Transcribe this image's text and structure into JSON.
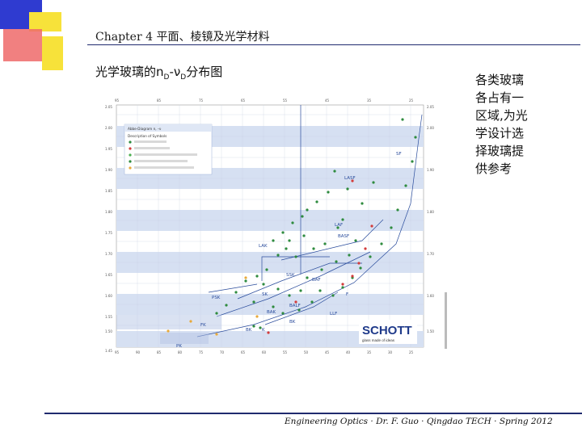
{
  "header": {
    "title": "Chapter 4 平面、棱镜及光学材料"
  },
  "slide": {
    "heading_main": "光学玻璃的n",
    "heading_sub1": "D",
    "heading_dash": "-ν",
    "heading_sub2": "D",
    "heading_tail": "分布图",
    "side_note": "各类玻璃各占有一区域,为光学设计选择玻璃提供参考"
  },
  "chart": {
    "legend_title": "Abbe-Diagram n, –ν",
    "legend_subtitle": "Description of Symbols",
    "legend_items": [
      {
        "color": "#2e8b3e"
      },
      {
        "color": "#d23b3b"
      },
      {
        "color": "#4caf50"
      },
      {
        "color": "#2e8b3e"
      },
      {
        "color": "#e8a93a"
      }
    ],
    "regions": [
      "LASF",
      "LAF",
      "LAK",
      "BASF",
      "SSK",
      "BAK",
      "PSK",
      "SK",
      "BALF",
      "BAF",
      "LLF",
      "BK",
      "FK",
      "K",
      "PK",
      "F",
      "SF"
    ],
    "brand": "SCHOTT",
    "tagline": "glass made of ideas"
  },
  "footer": {
    "text": "Engineering Optics · Dr. F. Guo · Qingdao TECH · Spring 2012"
  },
  "colors": {
    "accent_blue": "#1f2a6e",
    "logo_yellow": "#f7e23a",
    "logo_red": "#e64a4a",
    "logo_blue": "#3b45d6"
  }
}
